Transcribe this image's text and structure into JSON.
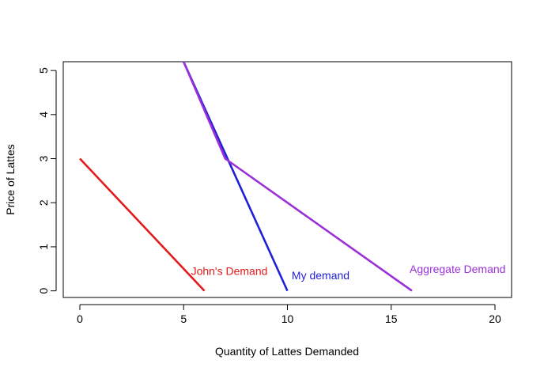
{
  "chart_data": {
    "type": "line",
    "title": "",
    "xlabel": "Quantity of Lattes Demanded",
    "ylabel": "Price of Lattes",
    "xlim": [
      -0.8,
      20.8
    ],
    "ylim": [
      -0.15,
      5.2
    ],
    "xticks": [
      0,
      5,
      10,
      15,
      20
    ],
    "yticks": [
      0,
      1,
      2,
      3,
      4,
      5
    ],
    "grid": false,
    "series": [
      {
        "name": "John's Demand",
        "color": "#e31a1c",
        "points": [
          [
            0,
            3
          ],
          [
            6,
            0
          ]
        ],
        "label": {
          "text": "John's Demand",
          "x": 7.2,
          "y": 0.45
        }
      },
      {
        "name": "My demand",
        "color": "#1f1fd8",
        "points": [
          [
            5,
            5.2
          ],
          [
            10,
            0
          ]
        ],
        "label": {
          "text": "My demand",
          "x": 11.6,
          "y": 0.35
        }
      },
      {
        "name": "Aggregate Demand",
        "color": "#9b30d9",
        "points": [
          [
            5,
            5.2
          ],
          [
            7,
            3
          ],
          [
            16,
            0
          ]
        ],
        "label": {
          "text": "Aggregate Demand",
          "x": 18.2,
          "y": 0.5
        }
      }
    ]
  }
}
